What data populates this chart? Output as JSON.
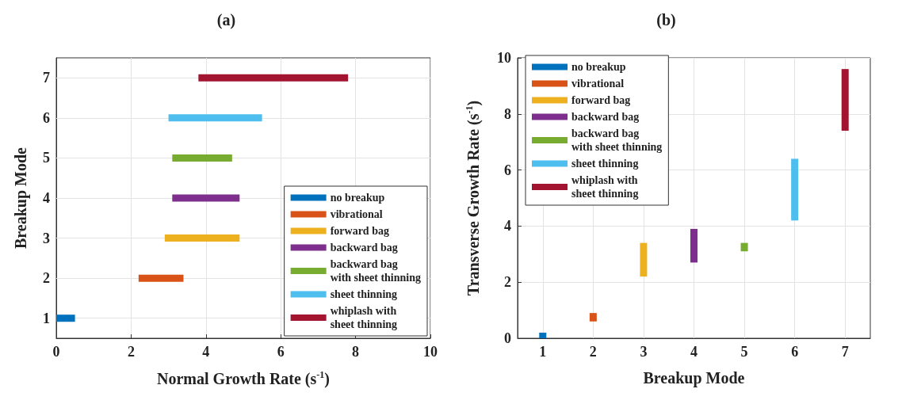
{
  "chart_data": [
    {
      "type": "bar",
      "title": "(a)",
      "orientation": "horizontal",
      "xlabel": "Normal Growth Rate (s$^{-1}$)",
      "ylabel": "Breakup Mode",
      "categories": [
        "7",
        "6",
        "5",
        "4",
        "3",
        "2",
        "1"
      ],
      "xlim": [
        0,
        10
      ],
      "xticks": [
        0,
        2,
        4,
        6,
        8,
        10
      ],
      "grid": true,
      "legend": "bottom right",
      "series": [
        {
          "name": "no breakup",
          "color": "#0072bd",
          "values": [
            null,
            null,
            null,
            null,
            null,
            null,
            0.5
          ],
          "base": [
            null,
            null,
            null,
            null,
            null,
            null,
            0
          ]
        },
        {
          "name": "vibrational",
          "color": "#d95319",
          "values": [
            null,
            null,
            null,
            null,
            null,
            1.2,
            null
          ],
          "base": [
            null,
            null,
            null,
            null,
            null,
            2.2,
            null
          ]
        },
        {
          "name": "forward bag",
          "color": "#edb120",
          "values": [
            null,
            null,
            null,
            null,
            2.0,
            null,
            null
          ],
          "base": [
            null,
            null,
            null,
            null,
            2.9,
            null,
            null
          ]
        },
        {
          "name": "backward bag",
          "color": "#7e2f8e",
          "values": [
            null,
            null,
            null,
            1.8,
            null,
            null,
            null
          ],
          "base": [
            null,
            null,
            null,
            3.1,
            null,
            null,
            null
          ]
        },
        {
          "name": "backward bag\nwith sheet thinning",
          "color": "#77ac30",
          "values": [
            null,
            null,
            1.6,
            null,
            null,
            null,
            null
          ],
          "base": [
            null,
            null,
            3.1,
            null,
            null,
            null,
            null
          ]
        },
        {
          "name": "sheet thinning",
          "color": "#4dbeee",
          "values": [
            null,
            2.5,
            null,
            null,
            null,
            null,
            null
          ],
          "base": [
            null,
            3.0,
            null,
            null,
            null,
            null,
            null
          ]
        },
        {
          "name": "whiplash with\nsheet thinning",
          "color": "#a2142f",
          "values": [
            4.0,
            null,
            null,
            null,
            null,
            null,
            null
          ],
          "base": [
            3.8,
            null,
            null,
            null,
            null,
            null,
            null
          ]
        }
      ]
    },
    {
      "type": "bar",
      "title": "(b)",
      "xlabel": "Breakup Mode",
      "ylabel": "Transverse Growth Rate (s$^{-1}$)",
      "categories": [
        "1",
        "2",
        "3",
        "4",
        "5",
        "6",
        "7"
      ],
      "ylim": [
        0,
        10
      ],
      "yticks": [
        0,
        2,
        4,
        6,
        8,
        10
      ],
      "grid": true,
      "legend": "top left",
      "series": [
        {
          "name": "no breakup",
          "color": "#0072bd",
          "values": [
            0.2,
            null,
            null,
            null,
            null,
            null,
            null
          ],
          "base": [
            0,
            null,
            null,
            null,
            null,
            null,
            null
          ]
        },
        {
          "name": "vibrational",
          "color": "#d95319",
          "values": [
            null,
            0.3,
            null,
            null,
            null,
            null,
            null
          ],
          "base": [
            null,
            0.6,
            null,
            null,
            null,
            null,
            null
          ]
        },
        {
          "name": "forward bag",
          "color": "#edb120",
          "values": [
            null,
            null,
            1.2,
            null,
            null,
            null,
            null
          ],
          "base": [
            null,
            null,
            2.2,
            null,
            null,
            null,
            null
          ]
        },
        {
          "name": "backward bag",
          "color": "#7e2f8e",
          "values": [
            null,
            null,
            null,
            1.2,
            null,
            null,
            null
          ],
          "base": [
            null,
            null,
            null,
            2.7,
            null,
            null,
            null
          ]
        },
        {
          "name": "backward bag\nwith sheet thinning",
          "color": "#77ac30",
          "values": [
            null,
            null,
            null,
            null,
            0.3,
            null,
            null
          ],
          "base": [
            null,
            null,
            null,
            null,
            3.1,
            null,
            null
          ]
        },
        {
          "name": "sheet thinning",
          "color": "#4dbeee",
          "values": [
            null,
            null,
            null,
            null,
            null,
            2.2,
            null
          ],
          "base": [
            null,
            null,
            null,
            null,
            null,
            4.2,
            null
          ]
        },
        {
          "name": "whiplash with\nsheet thinning",
          "color": "#a2142f",
          "values": [
            null,
            null,
            null,
            null,
            null,
            null,
            2.2
          ],
          "base": [
            null,
            null,
            null,
            null,
            null,
            null,
            7.4
          ]
        }
      ]
    }
  ]
}
